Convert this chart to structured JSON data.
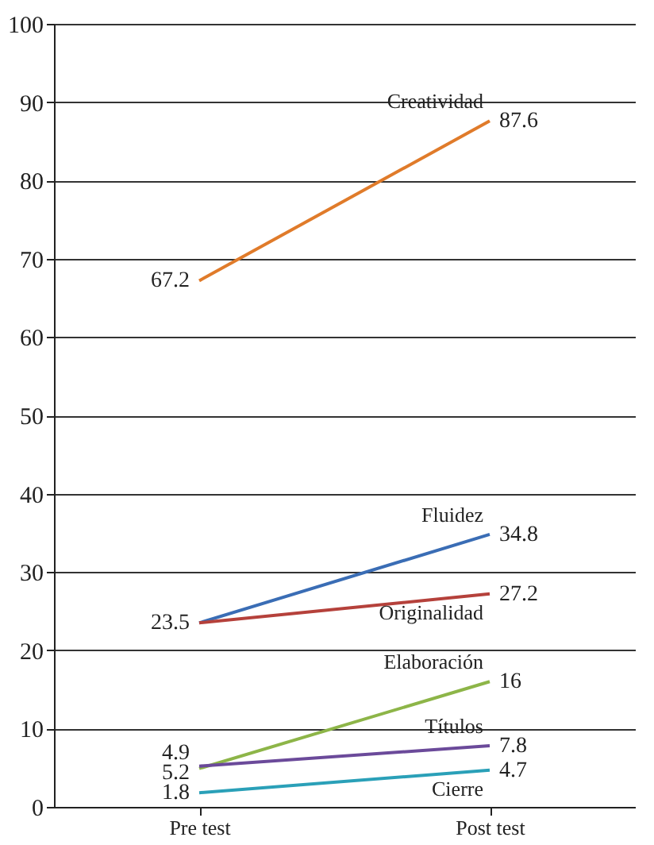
{
  "chart_data": {
    "type": "line",
    "categories": [
      "Pre test",
      "Post test"
    ],
    "series": [
      {
        "name": "Creatividad",
        "color": "#e07b2a",
        "values": [
          67.2,
          87.6
        ],
        "value_labels": [
          "67.2",
          "87.6"
        ]
      },
      {
        "name": "Fluidez",
        "color": "#3a6db5",
        "values": [
          23.5,
          34.8
        ],
        "value_labels": [
          "23.5",
          "34.8"
        ]
      },
      {
        "name": "Originalidad",
        "color": "#b5413b",
        "values": [
          23.5,
          27.2
        ],
        "value_labels": [
          null,
          "27.2"
        ]
      },
      {
        "name": "Elaboración",
        "color": "#8db548",
        "values": [
          4.9,
          16
        ],
        "value_labels": [
          "4.9",
          "16"
        ]
      },
      {
        "name": "Títulos",
        "color": "#6b4a9a",
        "values": [
          5.2,
          7.8
        ],
        "value_labels": [
          "5.2",
          "7.8"
        ]
      },
      {
        "name": "Cierre",
        "color": "#2aa0b8",
        "values": [
          1.8,
          4.7
        ],
        "value_labels": [
          "1.8",
          "4.7"
        ]
      }
    ],
    "ylim": [
      0,
      100
    ],
    "yticks": [
      0,
      10,
      20,
      30,
      40,
      50,
      60,
      70,
      80,
      90,
      100
    ],
    "grid": "y",
    "legend": false,
    "marker": "none"
  }
}
